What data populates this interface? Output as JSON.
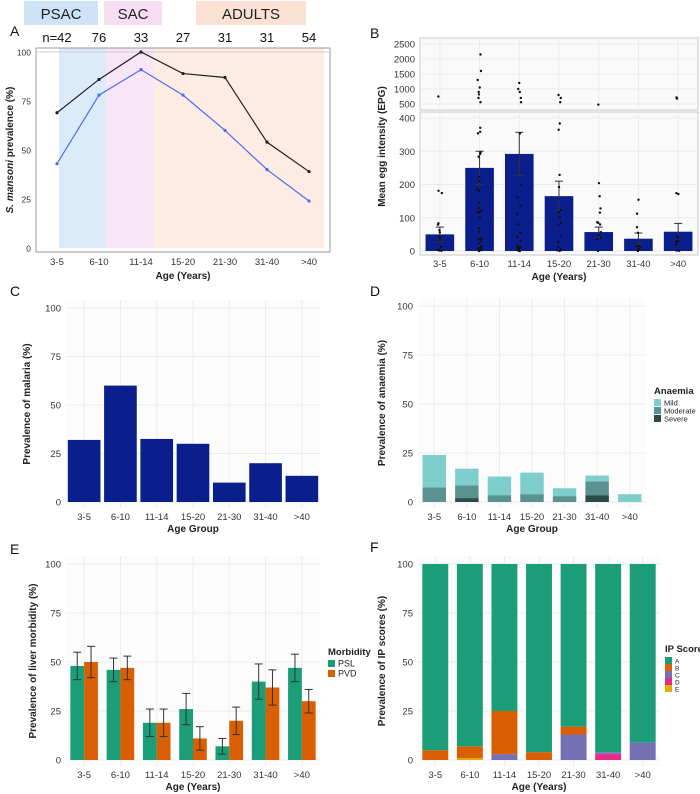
{
  "chart_data": [
    {
      "panel": "A",
      "type": "line",
      "categories": [
        "3-5",
        "6-10",
        "11-14",
        "15-20",
        "21-30",
        "31-40",
        ">40"
      ],
      "counts": [
        "n=42",
        "76",
        "33",
        "27",
        "31",
        "31",
        "54"
      ],
      "groups": [
        "PSAC",
        "SAC",
        "ADULTS"
      ],
      "series": [
        {
          "name": "black",
          "color": "#222222",
          "values": [
            69,
            86,
            100,
            89,
            87,
            54,
            39
          ]
        },
        {
          "name": "blue",
          "color": "#4a6cf0",
          "values": [
            43,
            78,
            91,
            78,
            60,
            40,
            24
          ]
        }
      ],
      "ylim": [
        0,
        100
      ],
      "yticks": [
        "0",
        "25",
        "50",
        "75",
        "100"
      ],
      "ylabel_em": "S. mansoni",
      "ylabel_rest": " prevalence (%)",
      "xlabel": "Age (Years)"
    },
    {
      "panel": "B",
      "type": "bar",
      "categories": [
        "3-5",
        "6-10",
        "11-14",
        "15-20",
        "21-30",
        "31-40",
        ">40"
      ],
      "values": [
        50,
        250,
        292,
        165,
        57,
        37,
        58
      ],
      "errors": [
        22,
        50,
        65,
        45,
        15,
        17,
        25
      ],
      "color": "#0b1f8c",
      "lower_ylim": [
        0,
        410
      ],
      "lower_ticks": [
        "0",
        "100",
        "200",
        "300",
        "400"
      ],
      "upper_ylim": [
        400,
        2500
      ],
      "upper_ticks": [
        "500",
        "1000",
        "1500",
        "2000",
        "2500"
      ],
      "ylabel": "Mean egg intensity (EPG)",
      "xlabel": "Age (Years)"
    },
    {
      "panel": "C",
      "type": "bar",
      "categories": [
        "3-5",
        "6-10",
        "11-14",
        "15-20",
        "21-30",
        "31-40",
        ">40"
      ],
      "values": [
        32,
        60,
        32.5,
        30,
        10,
        20,
        13.5
      ],
      "color": "#0b1f8c",
      "ylim": [
        0,
        100
      ],
      "yticks": [
        "0",
        "25",
        "50",
        "75",
        "100"
      ],
      "ylabel": "Prevalence of malaria (%)",
      "xlabel": "Age Group"
    },
    {
      "panel": "D",
      "type": "bar",
      "stacked": true,
      "categories": [
        "3-5",
        "6-10",
        "11-14",
        "15-20",
        "21-30",
        "31-40",
        ">40"
      ],
      "series": [
        {
          "name": "Severe",
          "color": "#2c4a48",
          "values": [
            0,
            2,
            0,
            0,
            0,
            3.5,
            0
          ]
        },
        {
          "name": "Moderate",
          "color": "#5a9290",
          "values": [
            7.5,
            6.5,
            3.5,
            4,
            3,
            7,
            0
          ]
        },
        {
          "name": "Mild",
          "color": "#7fcece",
          "values": [
            16.5,
            8.5,
            9.5,
            11,
            4,
            3,
            4
          ]
        }
      ],
      "legend_title": "Anaemia",
      "legend_order": [
        "Mild",
        "Moderate",
        "Severe"
      ],
      "ylim": [
        0,
        100
      ],
      "yticks": [
        "0",
        "25",
        "50",
        "75",
        "100"
      ],
      "ylabel": "Prevalence of anaemia (%)",
      "xlabel": "Age Group"
    },
    {
      "panel": "E",
      "type": "bar",
      "grouped": true,
      "categories": [
        "3-5",
        "6-10",
        "11-14",
        "15-20",
        "21-30",
        "31-40",
        ">40"
      ],
      "series": [
        {
          "name": "PSL",
          "color": "#1b9e77",
          "values": [
            48,
            46,
            19,
            26,
            7,
            40,
            47
          ],
          "errors": [
            7,
            6,
            7,
            8,
            4,
            9,
            7
          ]
        },
        {
          "name": "PVD",
          "color": "#d95f02",
          "values": [
            50,
            47,
            19,
            11,
            20,
            37,
            30
          ],
          "errors": [
            8,
            6,
            7,
            6,
            7,
            9,
            6
          ]
        }
      ],
      "legend_title": "Morbidity",
      "ylim": [
        0,
        100
      ],
      "yticks": [
        "0",
        "25",
        "50",
        "75",
        "100"
      ],
      "ylabel": "Prevalence of liver morbidity (%)",
      "xlabel": "Age (Years)"
    },
    {
      "panel": "F",
      "type": "bar",
      "stacked": true,
      "categories": [
        "3-5",
        "6-10",
        "11-14",
        "15-20",
        "21-30",
        "31-40",
        ">40"
      ],
      "series": [
        {
          "name": "E",
          "color": "#e6ab02",
          "values": [
            0,
            1,
            0,
            0,
            0,
            0,
            0
          ]
        },
        {
          "name": "D",
          "color": "#e7298a",
          "values": [
            0,
            0,
            0,
            0,
            0,
            3,
            0
          ]
        },
        {
          "name": "C",
          "color": "#7570b3",
          "values": [
            0,
            0,
            3,
            0,
            13,
            1,
            9
          ]
        },
        {
          "name": "B",
          "color": "#d95f02",
          "values": [
            5,
            6,
            22,
            4,
            4,
            0,
            0
          ]
        },
        {
          "name": "A",
          "color": "#1b9e77",
          "values": [
            95,
            93,
            75,
            96,
            83,
            96,
            91
          ]
        }
      ],
      "legend_title": "IP Score",
      "legend_order": [
        "A",
        "B",
        "C",
        "D",
        "E"
      ],
      "ylim": [
        0,
        100
      ],
      "yticks": [
        "0",
        "25",
        "50",
        "75",
        "100"
      ],
      "ylabel": "Prevalence of IP scores (%)",
      "xlabel": "Age (Years)"
    }
  ],
  "panel_labels": [
    "A",
    "B",
    "C",
    "D",
    "E",
    "F"
  ]
}
